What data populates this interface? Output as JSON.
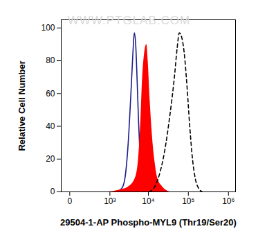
{
  "chart_data": {
    "type": "line",
    "xlabel": "29504-1-AP Phospho-MYL9 (Thr19/Ser20)",
    "ylabel": "Relative Cell Number",
    "annotations": [
      "WWW.PTGLAB.COM"
    ],
    "log": "x",
    "grid": false,
    "xlim": [
      -70,
      1500000
    ],
    "xticks": [
      0,
      {
        "value": 1000,
        "label": "10³"
      },
      {
        "value": 10000,
        "label": "10⁴"
      },
      {
        "value": 100000,
        "label": "10⁵"
      },
      {
        "value": 1000000,
        "label": "10⁶"
      }
    ],
    "ylim": [
      0,
      105
    ],
    "yticks": [
      0,
      20,
      40,
      60,
      80,
      100
    ],
    "series": [
      {
        "type": "line",
        "color": "#1c1c8a",
        "line_style": "solid",
        "x": [
          1380,
          2060,
          2510,
          3070,
          3600,
          4060,
          4400,
          4770,
          5160,
          5600,
          6070,
          6560,
          7410,
          9060
        ],
        "values": [
          0,
          2,
          8,
          30,
          60,
          85,
          97,
          90,
          70,
          45,
          25,
          10,
          3,
          0
        ]
      },
      {
        "type": "area",
        "color": "#ff0000",
        "line_style": "solid",
        "x": [
          923,
          1683,
          3070,
          4580,
          5600,
          6310,
          7110,
          8020,
          9060,
          9800,
          11040,
          12470,
          14620,
          17180,
          22750,
          33880
        ],
        "values": [
          0,
          1,
          3,
          8,
          20,
          40,
          70,
          85,
          90,
          80,
          55,
          35,
          18,
          8,
          3,
          0
        ]
      },
      {
        "type": "line",
        "color": "#000000",
        "line_style": "dashed",
        "x": [
          10210,
          13490,
          18620,
          25640,
          33880,
          44870,
          52720,
          59430,
          66990,
          78700,
          92250,
          108400,
          127000,
          149300,
          182400,
          222800
        ],
        "values": [
          0,
          2,
          10,
          25,
          45,
          70,
          88,
          97,
          95,
          85,
          65,
          40,
          20,
          8,
          2,
          0
        ]
      }
    ]
  }
}
